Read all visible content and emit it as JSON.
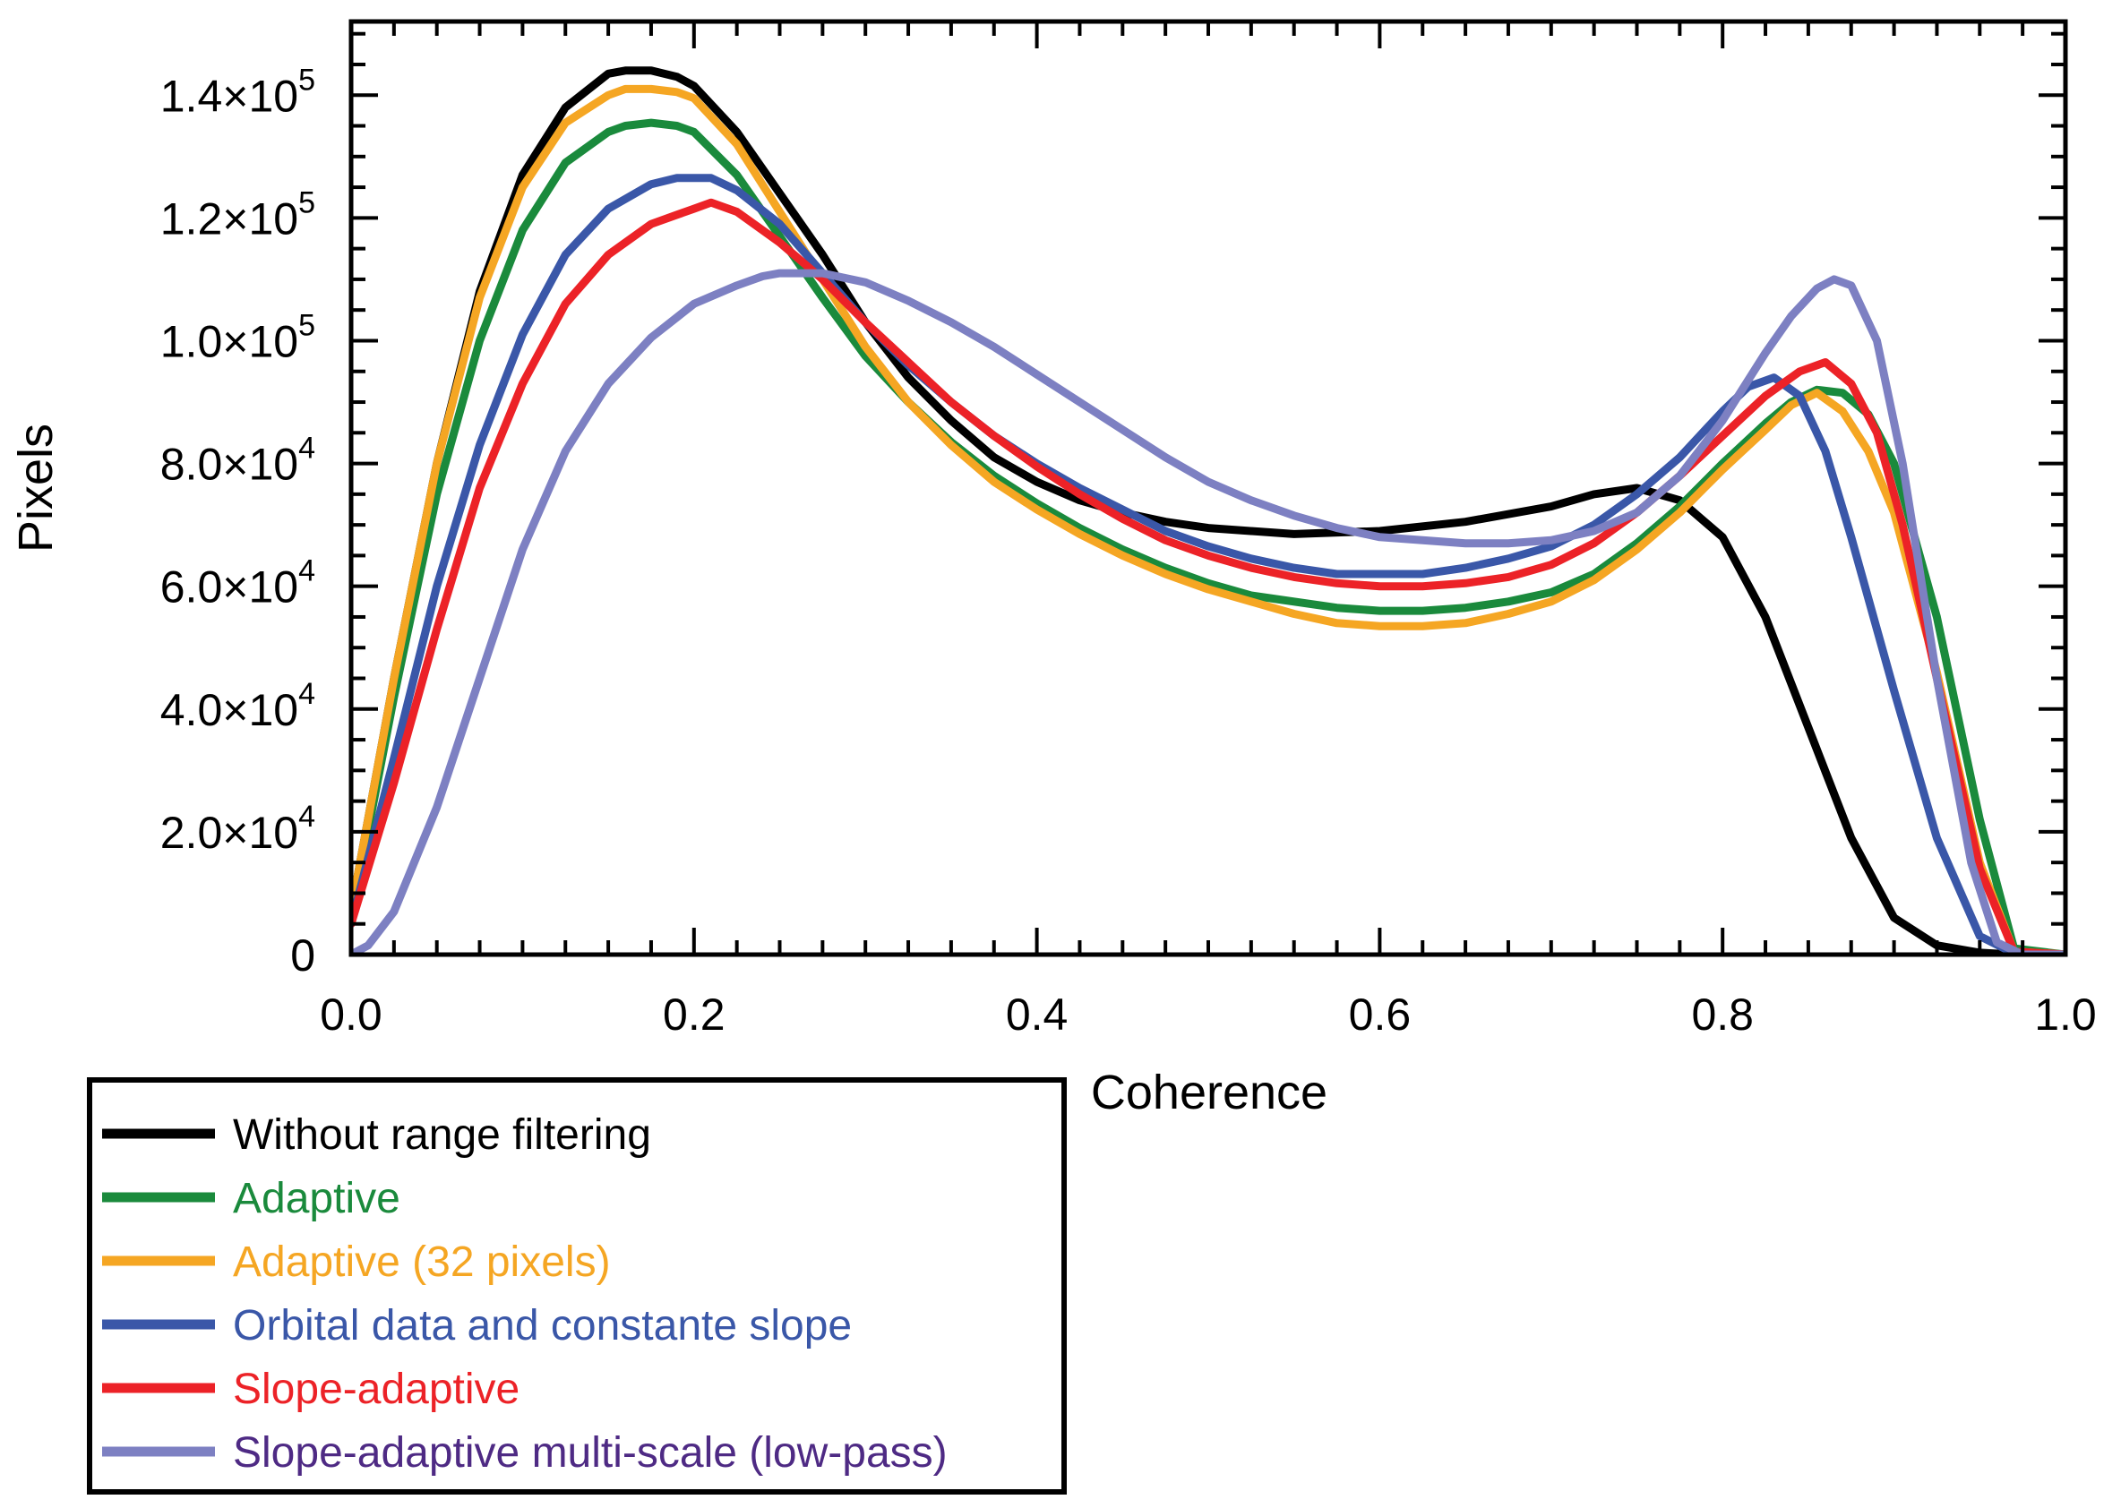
{
  "chart_data": {
    "type": "line",
    "title": "",
    "xlabel": "Coherence",
    "ylabel": "Pixels",
    "xlim": [
      0.0,
      1.0
    ],
    "ylim": [
      0,
      152000
    ],
    "x_ticks": [
      0.0,
      0.2,
      0.4,
      0.6,
      0.8,
      1.0
    ],
    "x_tick_labels": [
      "0.0",
      "0.2",
      "0.4",
      "0.6",
      "0.8",
      "1.0"
    ],
    "y_ticks": [
      0,
      20000,
      40000,
      60000,
      80000,
      100000,
      120000,
      140000
    ],
    "y_tick_labels": [
      {
        "mantissa": "0",
        "exponent": ""
      },
      {
        "mantissa": "2.0×10",
        "exponent": "4"
      },
      {
        "mantissa": "4.0×10",
        "exponent": "4"
      },
      {
        "mantissa": "6.0×10",
        "exponent": "4"
      },
      {
        "mantissa": "8.0×10",
        "exponent": "4"
      },
      {
        "mantissa": "1.0×10",
        "exponent": "5"
      },
      {
        "mantissa": "1.2×10",
        "exponent": "5"
      },
      {
        "mantissa": "1.4×10",
        "exponent": "5"
      }
    ],
    "legend_position": "bottom-left, below axes",
    "series": [
      {
        "name": "Without range filtering",
        "color": "#000000",
        "text_color": "#000000",
        "x": [
          0.0,
          0.025,
          0.05,
          0.075,
          0.1,
          0.125,
          0.15,
          0.16,
          0.175,
          0.19,
          0.2,
          0.225,
          0.25,
          0.275,
          0.3,
          0.325,
          0.35,
          0.375,
          0.4,
          0.425,
          0.45,
          0.475,
          0.5,
          0.55,
          0.6,
          0.65,
          0.7,
          0.725,
          0.75,
          0.775,
          0.8,
          0.825,
          0.85,
          0.875,
          0.9,
          0.925,
          0.95,
          0.97,
          1.0
        ],
        "y": [
          7000,
          45000,
          80000,
          108000,
          127000,
          138000,
          143500,
          144000,
          144000,
          143000,
          141500,
          134000,
          124000,
          114000,
          103000,
          94000,
          87000,
          81000,
          77000,
          74000,
          72000,
          70500,
          69500,
          68500,
          69000,
          70500,
          73000,
          75000,
          76000,
          74000,
          68000,
          55000,
          37000,
          19000,
          6000,
          1500,
          300,
          0,
          0
        ]
      },
      {
        "name": "Adaptive",
        "color": "#1a8a3c",
        "text_color": "#1a8a3c",
        "x": [
          0.0,
          0.025,
          0.05,
          0.075,
          0.1,
          0.125,
          0.15,
          0.16,
          0.175,
          0.19,
          0.2,
          0.225,
          0.25,
          0.275,
          0.3,
          0.325,
          0.35,
          0.375,
          0.4,
          0.425,
          0.45,
          0.475,
          0.5,
          0.525,
          0.55,
          0.575,
          0.6,
          0.625,
          0.65,
          0.675,
          0.7,
          0.725,
          0.75,
          0.775,
          0.8,
          0.825,
          0.84,
          0.855,
          0.87,
          0.885,
          0.9,
          0.925,
          0.95,
          0.97,
          1.0
        ],
        "y": [
          6000,
          42000,
          75000,
          100000,
          118000,
          129000,
          134000,
          135000,
          135500,
          135000,
          134000,
          127000,
          117000,
          107000,
          97500,
          90000,
          83500,
          78000,
          73500,
          69500,
          66000,
          63000,
          60500,
          58500,
          57500,
          56500,
          56000,
          56000,
          56500,
          57500,
          59000,
          62000,
          67000,
          73000,
          80000,
          86500,
          90000,
          92000,
          91500,
          88000,
          80000,
          55000,
          22000,
          1000,
          0
        ]
      },
      {
        "name": "Adaptive (32 pixels)",
        "color": "#f5a623",
        "text_color": "#f5a623",
        "x": [
          0.0,
          0.025,
          0.05,
          0.075,
          0.1,
          0.125,
          0.15,
          0.16,
          0.175,
          0.19,
          0.2,
          0.225,
          0.25,
          0.275,
          0.3,
          0.325,
          0.35,
          0.375,
          0.4,
          0.425,
          0.45,
          0.475,
          0.5,
          0.525,
          0.55,
          0.575,
          0.6,
          0.625,
          0.65,
          0.675,
          0.7,
          0.725,
          0.75,
          0.775,
          0.8,
          0.825,
          0.84,
          0.855,
          0.87,
          0.885,
          0.9,
          0.925,
          0.95,
          0.97,
          1.0
        ],
        "y": [
          7000,
          45000,
          80000,
          107000,
          125000,
          135500,
          140000,
          141000,
          141000,
          140500,
          139500,
          132000,
          121000,
          110000,
          99000,
          90000,
          83000,
          77000,
          72500,
          68500,
          65000,
          62000,
          59500,
          57500,
          55500,
          54000,
          53500,
          53500,
          54000,
          55500,
          57500,
          61000,
          66000,
          72000,
          79000,
          85500,
          89500,
          91500,
          88500,
          82000,
          72000,
          46000,
          15000,
          500,
          0
        ]
      },
      {
        "name": "Orbital data and constante slope",
        "color": "#3a57a8",
        "text_color": "#3a57a8",
        "x": [
          0.0,
          0.025,
          0.05,
          0.075,
          0.1,
          0.125,
          0.15,
          0.175,
          0.19,
          0.2,
          0.21,
          0.225,
          0.25,
          0.275,
          0.3,
          0.325,
          0.35,
          0.375,
          0.4,
          0.425,
          0.45,
          0.475,
          0.5,
          0.525,
          0.55,
          0.575,
          0.6,
          0.625,
          0.65,
          0.675,
          0.7,
          0.725,
          0.75,
          0.775,
          0.8,
          0.815,
          0.83,
          0.845,
          0.86,
          0.875,
          0.9,
          0.925,
          0.95,
          0.97,
          1.0
        ],
        "y": [
          5000,
          32000,
          60000,
          83000,
          101000,
          114000,
          121500,
          125500,
          126500,
          126500,
          126500,
          124500,
          119000,
          111000,
          103000,
          96000,
          90000,
          84500,
          80000,
          76000,
          72500,
          69000,
          66500,
          64500,
          63000,
          62000,
          62000,
          62000,
          63000,
          64500,
          66500,
          70000,
          75000,
          81000,
          88500,
          92500,
          94000,
          91000,
          82000,
          68000,
          43000,
          19000,
          3000,
          200,
          0
        ]
      },
      {
        "name": "Slope-adaptive",
        "color": "#ec2227",
        "text_color": "#ec2227",
        "x": [
          0.0,
          0.025,
          0.05,
          0.075,
          0.1,
          0.125,
          0.15,
          0.175,
          0.19,
          0.2,
          0.21,
          0.225,
          0.25,
          0.275,
          0.3,
          0.325,
          0.35,
          0.375,
          0.4,
          0.425,
          0.45,
          0.475,
          0.5,
          0.525,
          0.55,
          0.575,
          0.6,
          0.625,
          0.65,
          0.675,
          0.7,
          0.725,
          0.75,
          0.775,
          0.8,
          0.825,
          0.845,
          0.86,
          0.875,
          0.89,
          0.905,
          0.925,
          0.95,
          0.97,
          1.0
        ],
        "y": [
          5000,
          28000,
          53000,
          76000,
          93000,
          106000,
          114000,
          119000,
          120500,
          121500,
          122500,
          121000,
          116000,
          110000,
          103000,
          96500,
          90000,
          84500,
          79500,
          75000,
          71000,
          67500,
          65000,
          63000,
          61500,
          60500,
          60000,
          60000,
          60500,
          61500,
          63500,
          67000,
          72000,
          78000,
          84500,
          91000,
          95000,
          96500,
          93000,
          85000,
          70000,
          45000,
          14000,
          500,
          0
        ]
      },
      {
        "name": "Slope-adaptive multi-scale (low-pass)",
        "color": "#7d80c2",
        "text_color": "#4e2a84",
        "x": [
          0.0,
          0.01,
          0.025,
          0.05,
          0.075,
          0.1,
          0.125,
          0.15,
          0.175,
          0.2,
          0.225,
          0.24,
          0.25,
          0.275,
          0.3,
          0.325,
          0.35,
          0.375,
          0.4,
          0.425,
          0.45,
          0.475,
          0.5,
          0.525,
          0.55,
          0.575,
          0.6,
          0.625,
          0.65,
          0.675,
          0.7,
          0.725,
          0.75,
          0.775,
          0.8,
          0.825,
          0.84,
          0.855,
          0.865,
          0.875,
          0.89,
          0.905,
          0.925,
          0.945,
          0.96,
          0.975,
          1.0
        ],
        "y": [
          0,
          1500,
          7000,
          24000,
          45000,
          66000,
          82000,
          93000,
          100500,
          106000,
          109000,
          110500,
          111000,
          111000,
          109500,
          106500,
          103000,
          99000,
          94500,
          90000,
          85500,
          81000,
          77000,
          74000,
          71500,
          69500,
          68000,
          67500,
          67000,
          67000,
          67500,
          69000,
          72000,
          78000,
          87000,
          98000,
          104000,
          108500,
          110000,
          109000,
          100000,
          80000,
          45000,
          15000,
          2000,
          0,
          0
        ]
      }
    ]
  }
}
